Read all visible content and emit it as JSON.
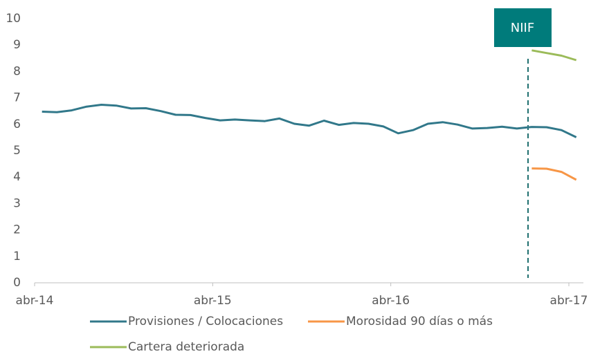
{
  "chart_data": {
    "type": "line",
    "categories": [
      "abr-14",
      null,
      null,
      null,
      null,
      null,
      null,
      null,
      null,
      null,
      null,
      null,
      "abr-15",
      null,
      null,
      null,
      null,
      null,
      null,
      null,
      null,
      null,
      null,
      null,
      "abr-16",
      null,
      null,
      null,
      null,
      null,
      null,
      null,
      null,
      null,
      null,
      null,
      "abr-17"
    ],
    "series": [
      {
        "name": "Provisiones / Colocaciones",
        "color": "#31788a",
        "values": [
          6.48,
          6.46,
          6.53,
          6.67,
          6.74,
          6.71,
          6.6,
          6.61,
          6.5,
          6.36,
          6.35,
          6.24,
          6.15,
          6.18,
          6.15,
          6.12,
          6.22,
          6.02,
          5.95,
          6.14,
          5.98,
          6.05,
          6.02,
          5.92,
          5.66,
          5.78,
          6.02,
          6.08,
          5.99,
          5.84,
          5.86,
          5.91,
          5.84,
          5.9,
          5.89,
          5.78,
          5.51
        ]
      },
      {
        "name": "Morosidad 90 días o más",
        "color": "#f79646",
        "values": [
          null,
          null,
          null,
          null,
          null,
          null,
          null,
          null,
          null,
          null,
          null,
          null,
          null,
          null,
          null,
          null,
          null,
          null,
          null,
          null,
          null,
          null,
          null,
          null,
          null,
          null,
          null,
          null,
          null,
          null,
          null,
          null,
          null,
          4.33,
          4.32,
          4.2,
          3.9
        ]
      },
      {
        "name": "Cartera deteriorada",
        "color": "#9bbb59",
        "values": [
          null,
          null,
          null,
          null,
          null,
          null,
          null,
          null,
          null,
          null,
          null,
          null,
          null,
          null,
          null,
          null,
          null,
          null,
          null,
          null,
          null,
          null,
          null,
          null,
          null,
          null,
          null,
          null,
          null,
          null,
          null,
          null,
          null,
          8.8,
          8.7,
          8.6,
          8.43
        ]
      }
    ],
    "annotation": "NIIF",
    "ylim": [
      0,
      10
    ],
    "yticks": [
      0,
      1,
      2,
      3,
      4,
      5,
      6,
      7,
      8,
      9,
      10
    ],
    "grid": false,
    "legend": "bottom"
  }
}
